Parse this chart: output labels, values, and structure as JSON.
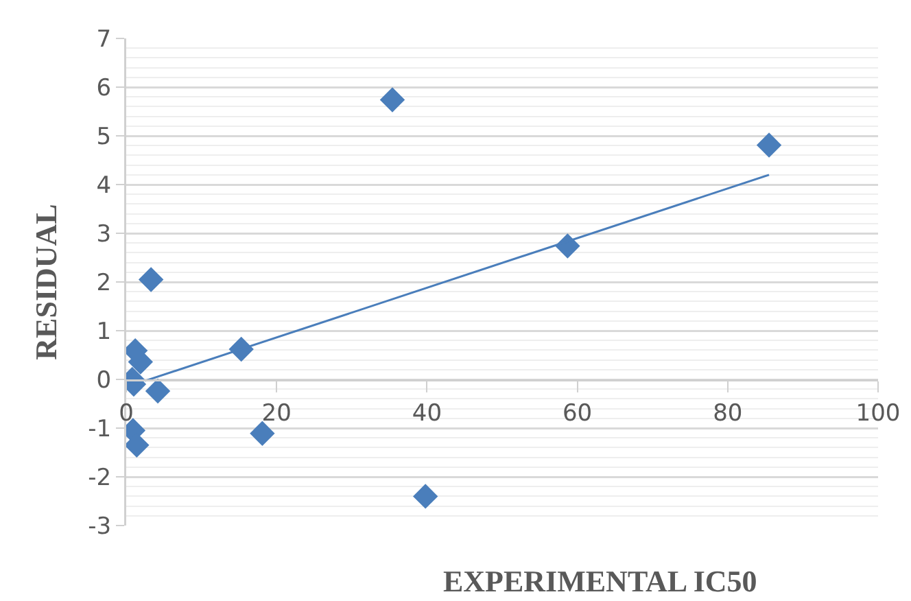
{
  "chart_data": {
    "type": "scatter",
    "xlabel": "EXPERIMENTAL IC50",
    "ylabel": "RESIDUAL",
    "xlim": [
      0,
      100
    ],
    "xticks": [
      0,
      20,
      40,
      60,
      80,
      100
    ],
    "ylim": [
      -3,
      7
    ],
    "yticks": [
      -3,
      -2,
      -1,
      0,
      1,
      2,
      3,
      4,
      5,
      6,
      7
    ],
    "grid": "y",
    "marker": "diamond",
    "series": [
      {
        "color": "#4a7ebb",
        "x": [
          35.4,
          85.5,
          58.7,
          3.3,
          15.3,
          18.1,
          39.8,
          1.2,
          1.9,
          0.8,
          1.0,
          4.2,
          0.9,
          1.4
        ],
        "values": [
          5.74,
          4.81,
          2.74,
          2.05,
          0.62,
          -1.11,
          -2.4,
          0.59,
          0.36,
          0.0,
          -0.1,
          -0.24,
          -1.05,
          -1.35
        ]
      },
      {
        "type": "line",
        "color": "#4a7ebb",
        "marker": "none",
        "x": [
          2.5,
          85.5
        ],
        "values": [
          -0.03,
          4.2
        ]
      }
    ]
  }
}
